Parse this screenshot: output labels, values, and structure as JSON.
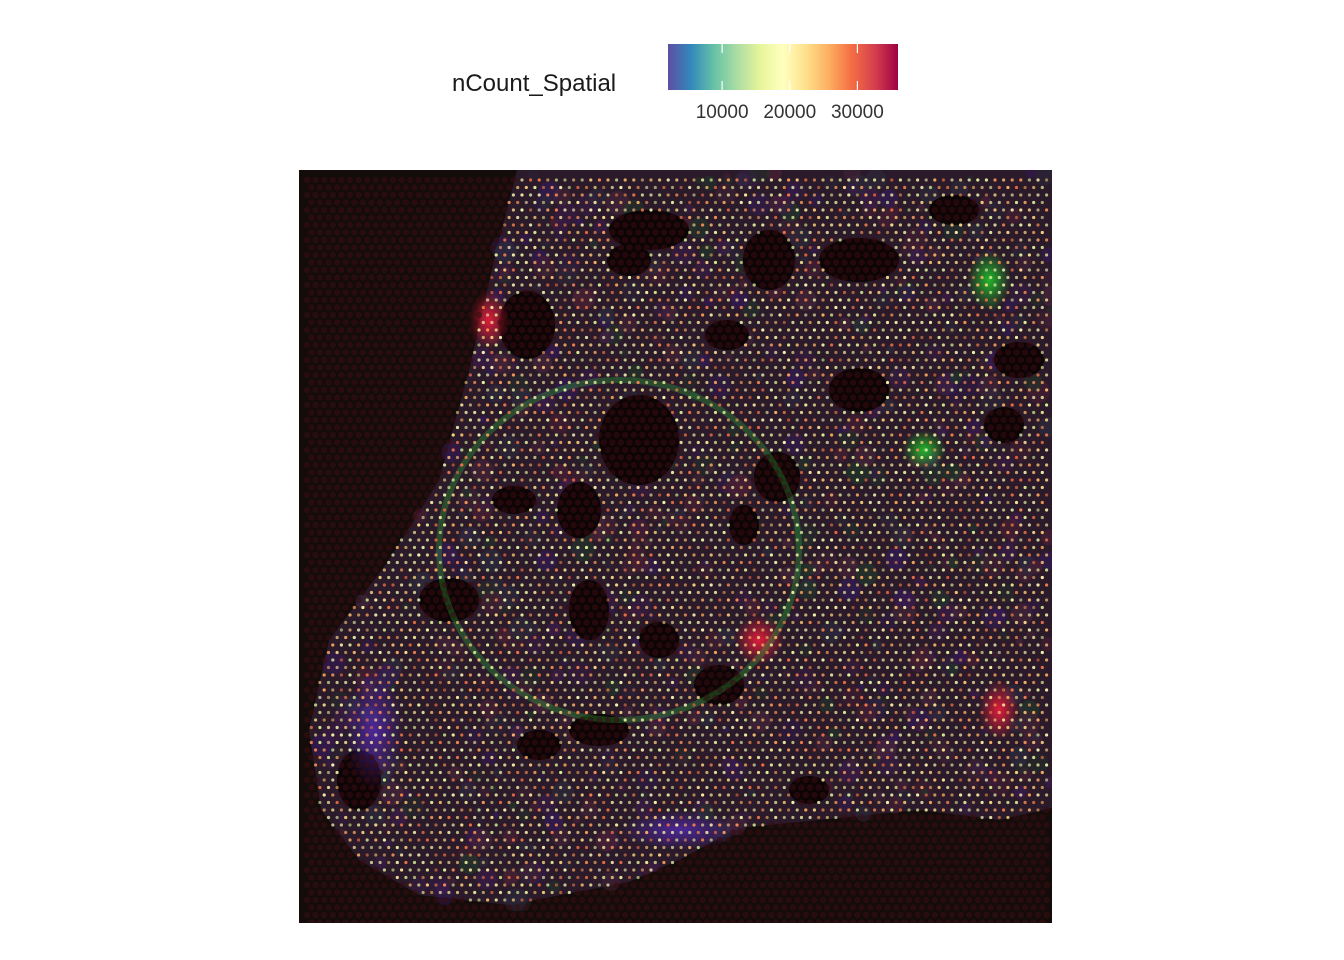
{
  "legend": {
    "title": "nCount_Spatial",
    "ticks": [
      "10000",
      "20000",
      "30000"
    ],
    "tick_values": [
      10000,
      20000,
      30000
    ],
    "range": [
      2000,
      36000
    ],
    "palette": [
      "#5e4fa2",
      "#3288bd",
      "#66c2a5",
      "#abdda4",
      "#e6f598",
      "#ffffbf",
      "#fee08b",
      "#fdae61",
      "#f46d43",
      "#d53e4f",
      "#9e0142"
    ]
  },
  "chart_data": {
    "type": "heatmap",
    "title": "",
    "xlabel": "",
    "ylabel": "",
    "color_variable": "nCount_Spatial",
    "color_scale": "Spectral (reversed)",
    "color_range": [
      2000,
      36000
    ],
    "background": "fluorescence tissue image",
    "grid": false,
    "legend_position": "top"
  }
}
